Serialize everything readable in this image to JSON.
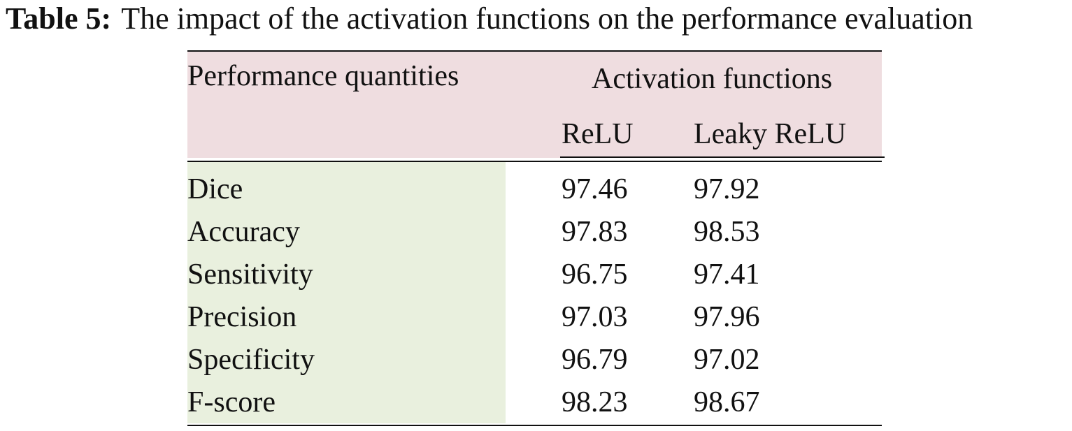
{
  "caption": {
    "label": "Table 5:",
    "text": "The impact of the activation functions on the performance evaluation"
  },
  "table": {
    "row_header": "Performance quantities",
    "group_header": "Activation functions",
    "columns": [
      "ReLU",
      "Leaky ReLU"
    ],
    "rows": [
      {
        "label": "Dice",
        "values": [
          "97.46",
          "97.92"
        ]
      },
      {
        "label": "Accuracy",
        "values": [
          "97.83",
          "98.53"
        ]
      },
      {
        "label": "Sensitivity",
        "values": [
          "96.75",
          "97.41"
        ]
      },
      {
        "label": "Precision",
        "values": [
          "97.03",
          "97.96"
        ]
      },
      {
        "label": "Specificity",
        "values": [
          "96.79",
          "97.02"
        ]
      },
      {
        "label": "F-score",
        "values": [
          "98.23",
          "98.67"
        ]
      }
    ]
  },
  "colors": {
    "header_background": "#efdde0",
    "row_label_background": "#e9f0de",
    "text": "#111111"
  }
}
